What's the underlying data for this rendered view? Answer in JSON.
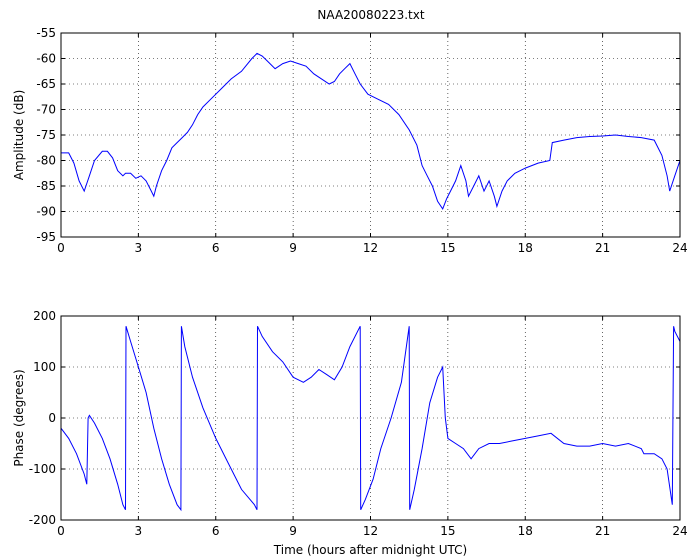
{
  "figure": {
    "title": "NAA20080223.txt"
  },
  "chart_data": [
    {
      "type": "line",
      "title": "NAA20080223.txt",
      "xlabel": "",
      "ylabel": "Amplitude (dB)",
      "xlim": [
        0,
        24
      ],
      "ylim": [
        -95,
        -55
      ],
      "xticks": [
        0,
        3,
        6,
        9,
        12,
        15,
        18,
        21,
        24
      ],
      "yticks": [
        -95,
        -90,
        -85,
        -80,
        -75,
        -70,
        -65,
        -60,
        -55
      ],
      "grid": true,
      "color": "#0000ff",
      "series": [
        {
          "x": [
            0,
            0.3,
            0.5,
            0.7,
            0.9,
            1.1,
            1.3,
            1.6,
            1.8,
            2.0,
            2.2,
            2.4,
            2.5,
            2.7,
            2.9,
            3.1,
            3.3,
            3.5,
            3.6,
            3.7,
            3.9,
            4.1,
            4.3,
            4.5,
            4.7,
            4.9,
            5.1,
            5.3,
            5.5,
            5.8,
            6.2,
            6.6,
            7.0,
            7.4,
            7.6,
            7.8,
            8.0,
            8.3,
            8.6,
            8.9,
            9.2,
            9.5,
            9.8,
            10.1,
            10.4,
            10.6,
            10.8,
            11.0,
            11.2,
            11.4,
            11.6,
            11.9,
            12.3,
            12.7,
            13.1,
            13.5,
            13.8,
            14.0,
            14.2,
            14.4,
            14.6,
            14.8,
            14.95,
            15.1,
            15.3,
            15.5,
            15.7,
            15.8,
            16.0,
            16.2,
            16.4,
            16.6,
            16.8,
            16.9,
            17.1,
            17.3,
            17.6,
            18.0,
            18.5,
            18.95,
            19.05,
            19.5,
            20.0,
            20.5,
            21.0,
            21.5,
            22.0,
            22.5,
            23.0,
            23.3,
            23.5,
            23.6,
            23.8,
            24.0
          ],
          "y": [
            -78.5,
            -78.5,
            -80.5,
            -84,
            -86,
            -83,
            -80,
            -78.2,
            -78.2,
            -79.5,
            -82,
            -83,
            -82.5,
            -82.5,
            -83.5,
            -83,
            -84,
            -86,
            -87,
            -85,
            -82,
            -80,
            -77.5,
            -76.5,
            -75.5,
            -74.5,
            -73,
            -71,
            -69.5,
            -68,
            -66,
            -64,
            -62.5,
            -60,
            -59,
            -59.5,
            -60.5,
            -62,
            -61,
            -60.5,
            -61,
            -61.5,
            -63,
            -64,
            -65,
            -64.5,
            -63,
            -62,
            -61,
            -63,
            -65,
            -67,
            -68,
            -69,
            -71,
            -74,
            -77,
            -81,
            -83,
            -85,
            -88,
            -89.5,
            -87.5,
            -86,
            -84,
            -81,
            -84,
            -87,
            -85,
            -83,
            -86,
            -84,
            -87,
            -89,
            -86,
            -84,
            -82.5,
            -81.5,
            -80.5,
            -80,
            -76.5,
            -76,
            -75.5,
            -75.3,
            -75.2,
            -75,
            -75.3,
            -75.5,
            -76,
            -79,
            -83,
            -86,
            -83,
            -80
          ]
        }
      ]
    },
    {
      "type": "line",
      "title": "",
      "xlabel": "Time (hours after midnight UTC)",
      "ylabel": "Phase (degrees)",
      "xlim": [
        0,
        24
      ],
      "ylim": [
        -200,
        200
      ],
      "xticks": [
        0,
        3,
        6,
        9,
        12,
        15,
        18,
        21,
        24
      ],
      "yticks": [
        -200,
        -100,
        0,
        100,
        200
      ],
      "grid": true,
      "color": "#0000ff",
      "series": [
        {
          "x": [
            0,
            0.3,
            0.6,
            0.9,
            1.0,
            1.05,
            1.1,
            1.3,
            1.6,
            1.9,
            2.2,
            2.4,
            2.5,
            2.52,
            2.7,
            3.0,
            3.3,
            3.6,
            3.9,
            4.2,
            4.5,
            4.65,
            4.67,
            4.8,
            5.1,
            5.5,
            6.0,
            6.5,
            7.0,
            7.5,
            7.6,
            7.62,
            7.8,
            8.2,
            8.6,
            9.0,
            9.4,
            9.7,
            10.0,
            10.3,
            10.6,
            10.9,
            11.2,
            11.6,
            11.62,
            11.8,
            12.1,
            12.4,
            12.8,
            13.2,
            13.5,
            13.52,
            13.7,
            14.0,
            14.3,
            14.6,
            14.8,
            14.9,
            15.0,
            15.3,
            15.6,
            15.9,
            16.2,
            16.6,
            17.0,
            17.5,
            18.0,
            18.5,
            19.0,
            19.5,
            20.0,
            20.5,
            21.0,
            21.5,
            22.0,
            22.5,
            22.6,
            23.0,
            23.3,
            23.5,
            23.7,
            23.75,
            23.8,
            24.0
          ],
          "y": [
            -20,
            -40,
            -70,
            -110,
            -130,
            0,
            5,
            -10,
            -40,
            -80,
            -130,
            -170,
            -180,
            180,
            150,
            100,
            50,
            -20,
            -80,
            -130,
            -170,
            -180,
            180,
            140,
            80,
            20,
            -40,
            -90,
            -140,
            -170,
            -180,
            180,
            160,
            130,
            110,
            80,
            70,
            80,
            95,
            85,
            75,
            100,
            140,
            180,
            -180,
            -160,
            -120,
            -60,
            0,
            70,
            180,
            -180,
            -140,
            -60,
            30,
            80,
            100,
            0,
            -40,
            -50,
            -60,
            -80,
            -60,
            -50,
            -50,
            -45,
            -40,
            -35,
            -30,
            -50,
            -55,
            -55,
            -50,
            -55,
            -50,
            -60,
            -70,
            -70,
            -80,
            -100,
            -170,
            180,
            170,
            150
          ]
        }
      ]
    }
  ]
}
